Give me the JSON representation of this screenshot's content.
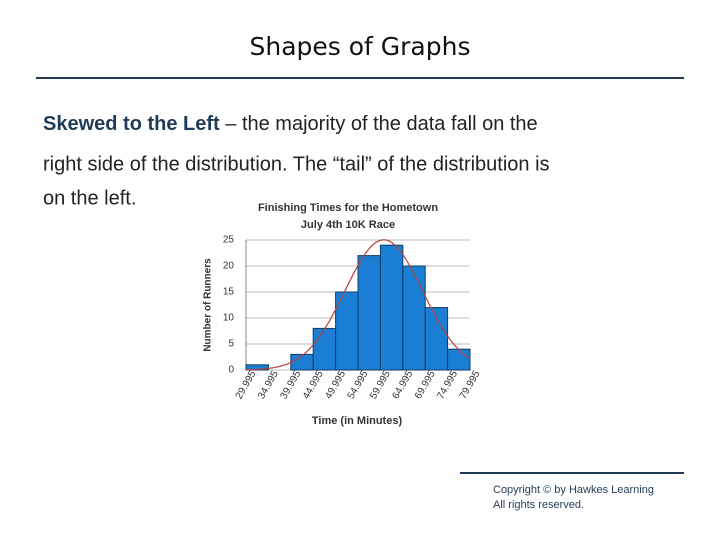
{
  "slide": {
    "title": "Shapes of Graphs",
    "heading": "Skewed to the Left",
    "lines": [
      "– the majority of the data fall on the",
      "right side of the distribution. The “tail” of the distribution is",
      "on the left."
    ],
    "copyright": [
      "Copyright © by Hawkes Learning",
      "All rights reserved."
    ]
  },
  "chart_data": {
    "type": "histogram",
    "title": [
      "Finishing Times for the Hometown",
      "July 4th 10K Race"
    ],
    "xlabel": "Time (in Minutes)",
    "ylabel": "Number of Runners",
    "bins": [
      29.995,
      34.995,
      39.995,
      44.995,
      49.995,
      54.995,
      59.995,
      64.995,
      69.995,
      74.995,
      79.995
    ],
    "values": [
      1,
      0,
      3,
      8,
      15,
      22,
      24,
      20,
      12,
      4
    ],
    "color": "#1a7fd4",
    "curve_color": "#b5413f",
    "xlim": [
      29.995,
      79.995
    ],
    "ylim": [
      0,
      25
    ],
    "yticks": [
      0,
      5,
      10,
      15,
      20,
      25
    ],
    "grid": true
  }
}
